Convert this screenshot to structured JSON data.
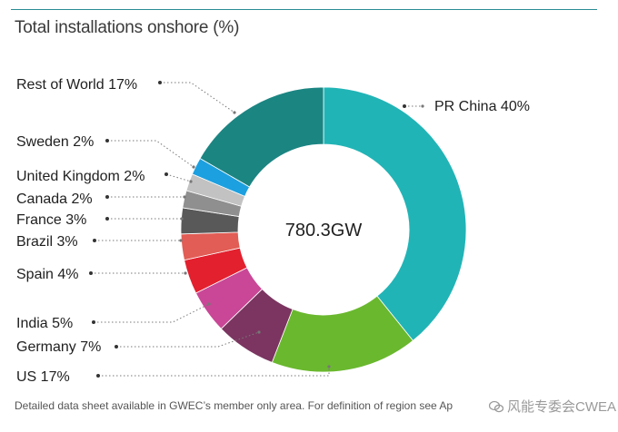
{
  "title": "Total installations onshore (%)",
  "footnote": "Detailed data sheet available in GWEC’s member only area. For definition of region see Ap",
  "watermark": "风能专委会CWEA",
  "chart_data": {
    "type": "donut",
    "title": "Total installations onshore (%)",
    "center_label": "780.3GW",
    "slices": [
      {
        "name": "PR China",
        "value": 40,
        "label": "PR China 40%",
        "color": "#21b4b6"
      },
      {
        "name": "US",
        "value": 17,
        "label": "US 17%",
        "color": "#6ab82e"
      },
      {
        "name": "Germany",
        "value": 7,
        "label": "Germany 7%",
        "color": "#7b3560"
      },
      {
        "name": "India",
        "value": 5,
        "label": "India 5%",
        "color": "#c94796"
      },
      {
        "name": "Spain",
        "value": 4,
        "label": "Spain 4%",
        "color": "#e3202e"
      },
      {
        "name": "Brazil",
        "value": 3,
        "label": "Brazil 3%",
        "color": "#e15d55"
      },
      {
        "name": "France",
        "value": 3,
        "label": "France 3%",
        "color": "#595959"
      },
      {
        "name": "Canada",
        "value": 2,
        "label": "Canada 2%",
        "color": "#8f8f8f"
      },
      {
        "name": "United Kingdom",
        "value": 2,
        "label": "United Kingdom 2%",
        "color": "#c2c2c2"
      },
      {
        "name": "Sweden",
        "value": 2,
        "label": "Sweden 2%",
        "color": "#1da0e0"
      },
      {
        "name": "Rest of World",
        "value": 17,
        "label": "Rest of World 17%",
        "color": "#1b8582"
      }
    ]
  }
}
